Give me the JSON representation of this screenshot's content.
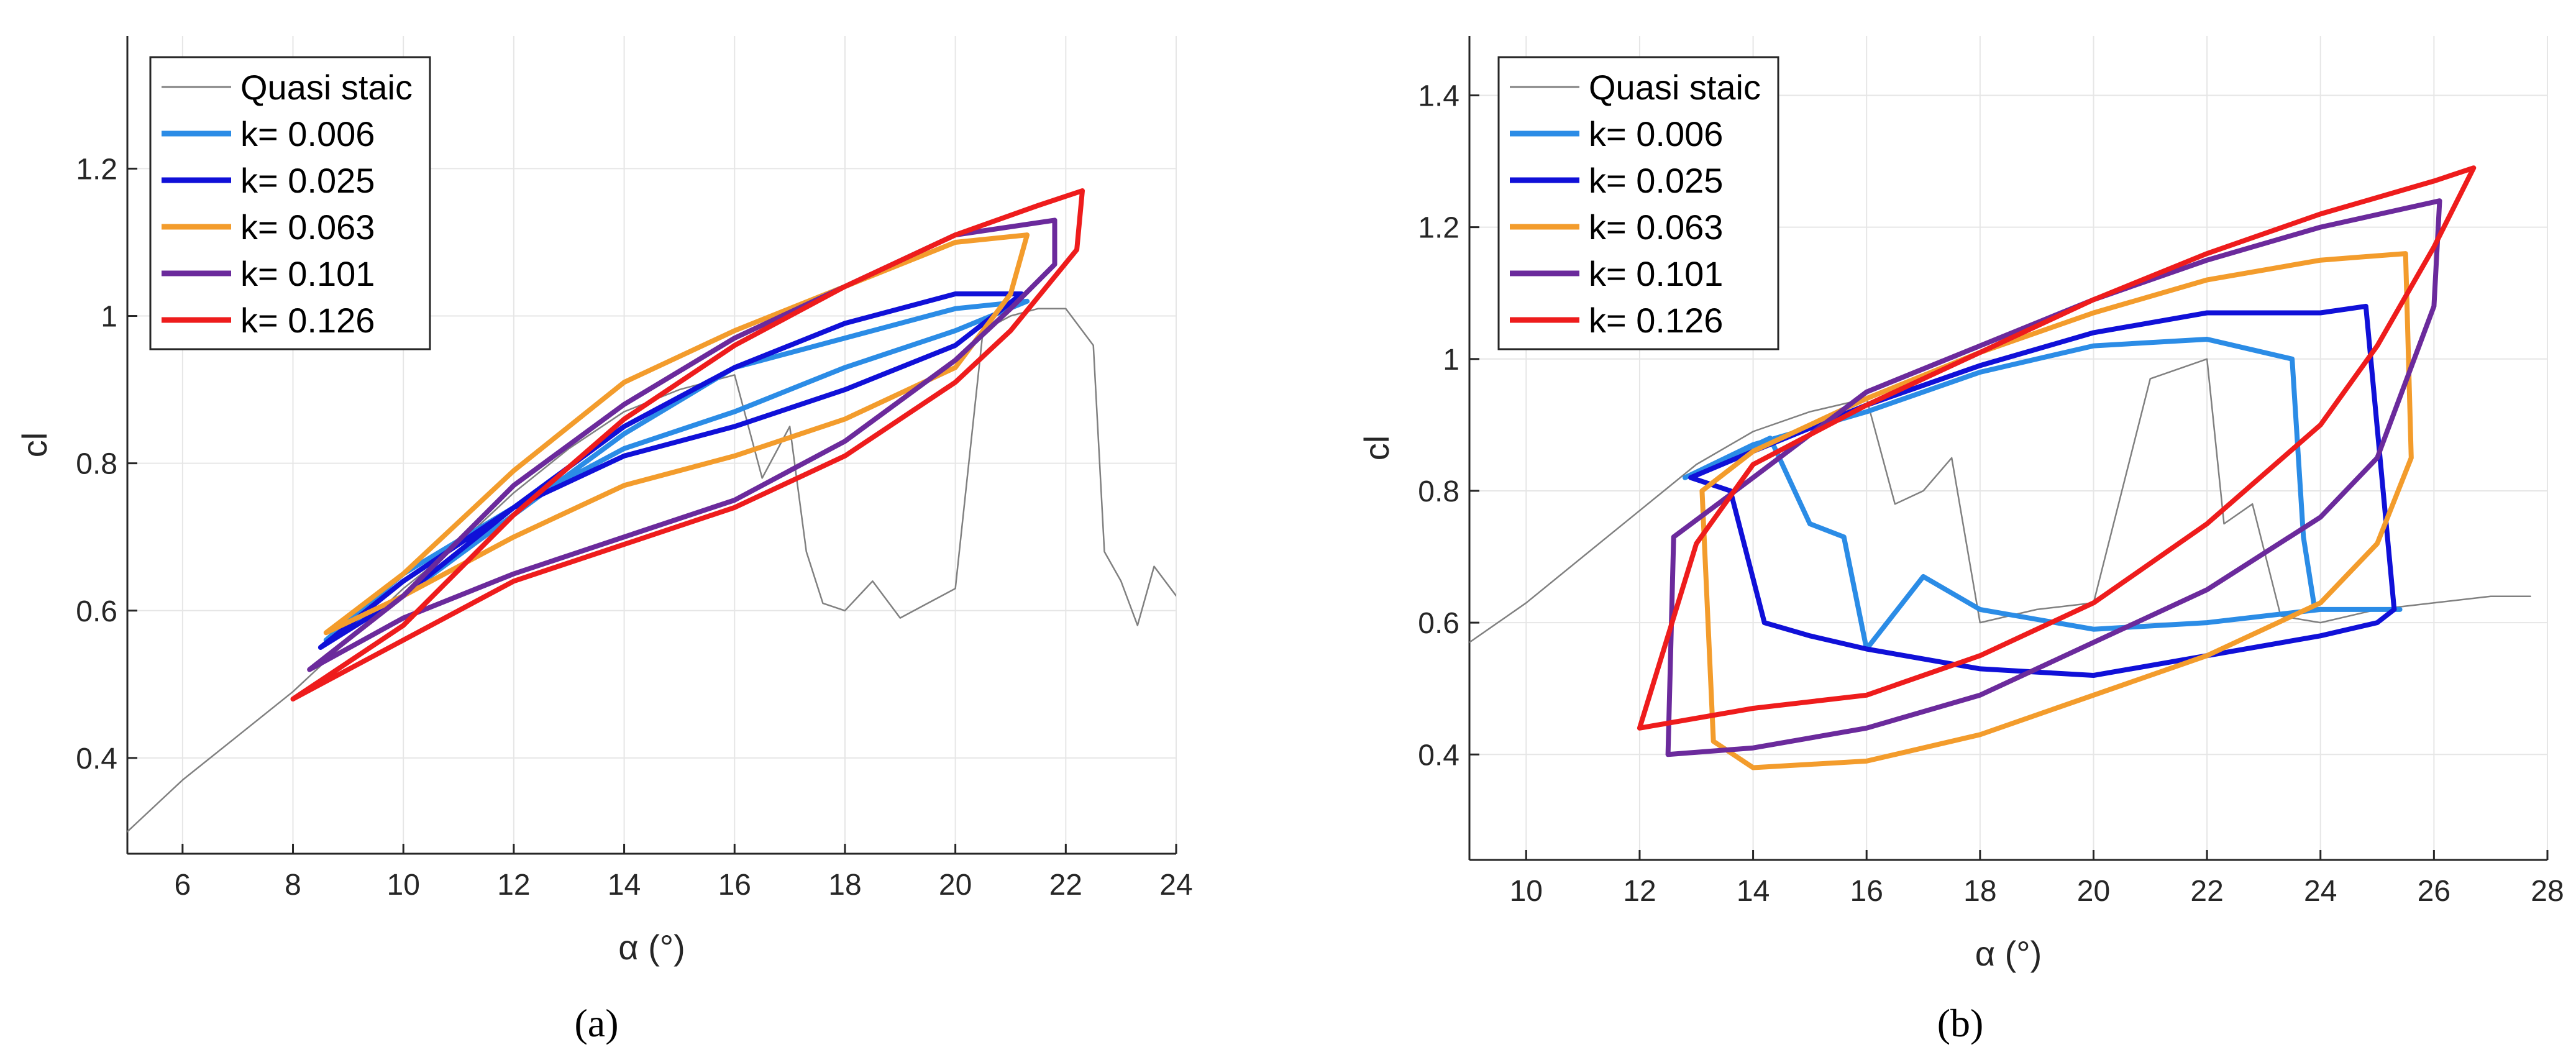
{
  "chart_data": [
    {
      "type": "line",
      "panel_label": "(a)",
      "xlabel": "α (°)",
      "ylabel": "cl",
      "xlim": [
        5,
        24
      ],
      "ylim": [
        0.27,
        1.38
      ],
      "xticks": [
        6,
        8,
        10,
        12,
        14,
        16,
        18,
        20,
        22,
        24
      ],
      "yticks": [
        0.4,
        0.6,
        0.8,
        1.0,
        1.2
      ],
      "ytick_labels": [
        "0.4",
        "0.6",
        "0.8",
        "1",
        "1.2"
      ],
      "grid": true,
      "legend_position": "top-left",
      "series": [
        {
          "name": "Quasi staic",
          "color": "#808080",
          "x": [
            5.0,
            6.0,
            7.0,
            8.0,
            9.0,
            10.0,
            11.0,
            12.0,
            13.0,
            14.0,
            15.0,
            16.0,
            16.5,
            17.0,
            17.3,
            17.6,
            18.0,
            18.5,
            19.0,
            19.5,
            20.0,
            20.5,
            21.0,
            21.5,
            22.0,
            22.5,
            22.7,
            23.0,
            23.3,
            23.6,
            24.0
          ],
          "y": [
            0.3,
            0.37,
            0.43,
            0.49,
            0.56,
            0.63,
            0.69,
            0.76,
            0.82,
            0.87,
            0.9,
            0.92,
            0.78,
            0.85,
            0.68,
            0.61,
            0.6,
            0.64,
            0.59,
            0.61,
            0.63,
            0.98,
            1.0,
            1.01,
            1.01,
            0.96,
            0.68,
            0.64,
            0.58,
            0.66,
            0.62
          ]
        },
        {
          "name": "k= 0.006",
          "color": "#2b8ce6",
          "x": [
            8.6,
            10.0,
            12.0,
            14.0,
            16.0,
            18.0,
            20.0,
            21.3,
            20.0,
            18.0,
            16.0,
            14.0,
            12.0,
            10.0,
            8.6
          ],
          "y": [
            0.56,
            0.62,
            0.73,
            0.84,
            0.93,
            0.97,
            1.01,
            1.02,
            0.98,
            0.93,
            0.87,
            0.82,
            0.74,
            0.65,
            0.56
          ]
        },
        {
          "name": "k= 0.025",
          "color": "#1010d8",
          "x": [
            8.5,
            10.0,
            12.0,
            14.0,
            16.0,
            18.0,
            20.0,
            21.2,
            20.0,
            18.0,
            16.0,
            14.0,
            12.0,
            10.0,
            8.5
          ],
          "y": [
            0.55,
            0.62,
            0.74,
            0.85,
            0.93,
            0.99,
            1.03,
            1.03,
            0.96,
            0.9,
            0.85,
            0.81,
            0.74,
            0.64,
            0.55
          ]
        },
        {
          "name": "k= 0.063",
          "color": "#f39c2c",
          "x": [
            8.6,
            10.0,
            12.0,
            14.0,
            16.0,
            18.0,
            20.0,
            21.3,
            21.0,
            20.0,
            18.0,
            16.0,
            14.0,
            12.0,
            10.0,
            8.6
          ],
          "y": [
            0.57,
            0.65,
            0.79,
            0.91,
            0.98,
            1.04,
            1.1,
            1.11,
            1.03,
            0.93,
            0.86,
            0.81,
            0.77,
            0.7,
            0.62,
            0.57
          ]
        },
        {
          "name": "k= 0.101",
          "color": "#6b2a9c",
          "x": [
            8.3,
            10.0,
            12.0,
            14.0,
            16.0,
            18.0,
            20.0,
            21.8,
            21.8,
            21.0,
            20.0,
            18.0,
            16.0,
            14.0,
            12.0,
            10.0,
            8.3
          ],
          "y": [
            0.52,
            0.62,
            0.77,
            0.88,
            0.97,
            1.04,
            1.11,
            1.13,
            1.07,
            1.01,
            0.94,
            0.83,
            0.75,
            0.7,
            0.65,
            0.59,
            0.52
          ]
        },
        {
          "name": "k= 0.126",
          "color": "#ee1c1c",
          "x": [
            8.0,
            10.0,
            12.0,
            14.0,
            16.0,
            18.0,
            20.0,
            21.5,
            22.3,
            22.2,
            21.0,
            20.0,
            18.0,
            16.0,
            14.0,
            12.0,
            10.0,
            8.0
          ],
          "y": [
            0.48,
            0.58,
            0.73,
            0.86,
            0.96,
            1.04,
            1.11,
            1.15,
            1.17,
            1.09,
            0.98,
            0.91,
            0.81,
            0.74,
            0.69,
            0.64,
            0.56,
            0.48
          ]
        }
      ]
    },
    {
      "type": "line",
      "panel_label": "(b)",
      "xlabel": "α (°)",
      "ylabel": "cl",
      "xlim": [
        9,
        28
      ],
      "ylim": [
        0.24,
        1.49
      ],
      "xticks": [
        10,
        12,
        14,
        16,
        18,
        20,
        22,
        24,
        26,
        28
      ],
      "yticks": [
        0.4,
        0.6,
        0.8,
        1.0,
        1.2,
        1.4
      ],
      "ytick_labels": [
        "0.4",
        "0.6",
        "0.8",
        "1",
        "1.2",
        "1.4"
      ],
      "grid": true,
      "legend_position": "top-left",
      "series": [
        {
          "name": "Quasi staic",
          "color": "#808080",
          "x": [
            9.0,
            10.0,
            11.0,
            12.0,
            13.0,
            14.0,
            15.0,
            16.0,
            16.5,
            17.0,
            17.5,
            18.0,
            19.0,
            20.0,
            21.0,
            22.0,
            22.3,
            22.8,
            23.3,
            24.0,
            25.0,
            26.0,
            27.0,
            27.7
          ],
          "y": [
            0.57,
            0.63,
            0.7,
            0.77,
            0.84,
            0.89,
            0.92,
            0.94,
            0.78,
            0.8,
            0.85,
            0.6,
            0.62,
            0.63,
            0.97,
            1.0,
            0.75,
            0.78,
            0.61,
            0.6,
            0.62,
            0.63,
            0.64,
            0.64
          ]
        },
        {
          "name": "k= 0.006",
          "color": "#2b8ce6",
          "x": [
            12.8,
            14.0,
            16.0,
            18.0,
            20.0,
            22.0,
            23.5,
            23.7,
            23.9,
            25.4,
            24.0,
            22.0,
            20.0,
            18.0,
            17.0,
            16.0,
            15.6,
            15.0,
            14.3,
            12.8
          ],
          "y": [
            0.82,
            0.87,
            0.92,
            0.98,
            1.02,
            1.03,
            1.0,
            0.73,
            0.62,
            0.62,
            0.62,
            0.6,
            0.59,
            0.62,
            0.67,
            0.56,
            0.73,
            0.75,
            0.88,
            0.82
          ]
        },
        {
          "name": "k= 0.025",
          "color": "#1010d8",
          "x": [
            12.9,
            14.0,
            16.0,
            18.0,
            20.0,
            22.0,
            24.0,
            24.8,
            25.3,
            25.0,
            24.0,
            22.0,
            20.0,
            18.0,
            16.0,
            15.0,
            14.2,
            13.6,
            12.9
          ],
          "y": [
            0.82,
            0.86,
            0.93,
            0.99,
            1.04,
            1.07,
            1.07,
            1.08,
            0.62,
            0.6,
            0.58,
            0.55,
            0.52,
            0.53,
            0.56,
            0.58,
            0.6,
            0.8,
            0.82
          ]
        },
        {
          "name": "k= 0.063",
          "color": "#f39c2c",
          "x": [
            13.1,
            14.0,
            16.0,
            18.0,
            20.0,
            22.0,
            24.0,
            25.5,
            25.6,
            25.0,
            24.0,
            22.0,
            20.0,
            18.0,
            16.0,
            14.0,
            13.3,
            13.1
          ],
          "y": [
            0.8,
            0.86,
            0.94,
            1.01,
            1.07,
            1.12,
            1.15,
            1.16,
            0.85,
            0.72,
            0.63,
            0.55,
            0.49,
            0.43,
            0.39,
            0.38,
            0.42,
            0.8
          ]
        },
        {
          "name": "k= 0.101",
          "color": "#6b2a9c",
          "x": [
            12.6,
            14.0,
            16.0,
            18.0,
            20.0,
            22.0,
            24.0,
            26.1,
            26.0,
            25.0,
            24.0,
            22.0,
            20.0,
            18.0,
            16.0,
            14.0,
            12.5,
            12.6
          ],
          "y": [
            0.73,
            0.82,
            0.95,
            1.02,
            1.09,
            1.15,
            1.2,
            1.24,
            1.08,
            0.85,
            0.76,
            0.65,
            0.57,
            0.49,
            0.44,
            0.41,
            0.4,
            0.73
          ]
        },
        {
          "name": "k= 0.126",
          "color": "#ee1c1c",
          "x": [
            12.0,
            13.0,
            14.0,
            16.0,
            18.0,
            20.0,
            22.0,
            24.0,
            26.0,
            26.7,
            26.0,
            25.0,
            24.0,
            22.0,
            20.0,
            18.0,
            16.0,
            14.0,
            12.0
          ],
          "y": [
            0.44,
            0.72,
            0.84,
            0.93,
            1.01,
            1.09,
            1.16,
            1.22,
            1.27,
            1.29,
            1.17,
            1.02,
            0.9,
            0.75,
            0.63,
            0.55,
            0.49,
            0.47,
            0.44
          ]
        }
      ]
    }
  ]
}
